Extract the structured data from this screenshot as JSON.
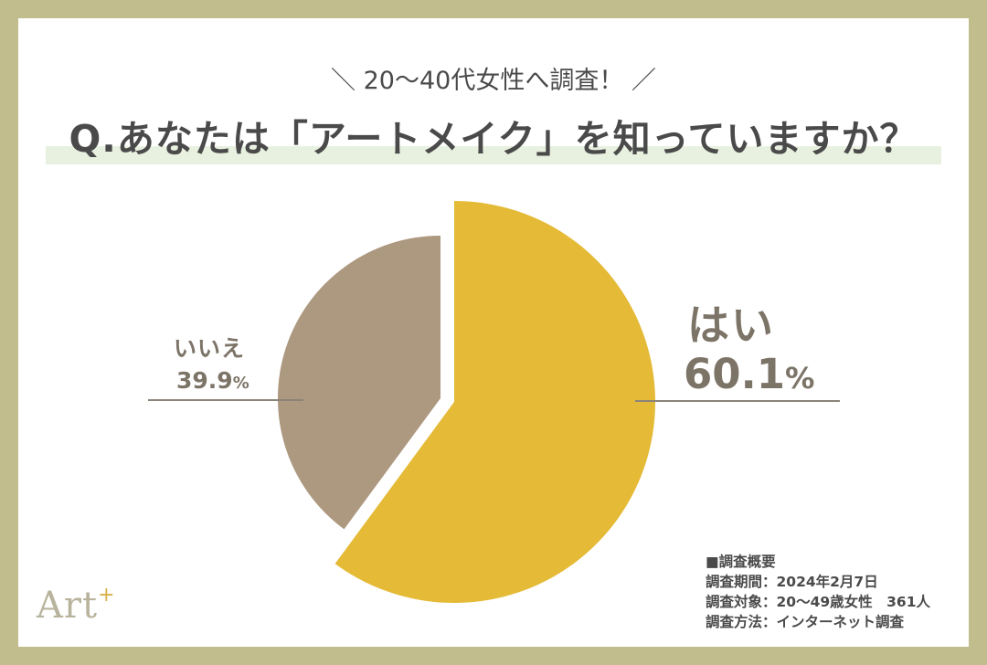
{
  "header": {
    "subtitle": "＼ 20〜40代女性へ調査！ ／",
    "title": "Q.あなたは「アートメイク」を知っていますか？"
  },
  "colors": {
    "frame": "#c2bd8c",
    "yes": "#e4ba36",
    "no": "#ad9880",
    "label_text": "#7d7468",
    "title_highlight": "#e8f1df"
  },
  "labels": {
    "yes": {
      "name": "はい",
      "value": "60.1",
      "unit": "%"
    },
    "no": {
      "name": "いいえ",
      "value": "39.9",
      "unit": "%"
    }
  },
  "summary": {
    "heading": "■調査概要",
    "lines": [
      "調査期間：2024年2月7日",
      "調査対象：20〜49歳女性　361人",
      "調査方法：インターネット調査"
    ]
  },
  "logo": {
    "text": "Art",
    "sup": "+"
  },
  "chart_data": {
    "type": "pie",
    "title": "Q.あなたは「アートメイク」を知っていますか？",
    "subtitle": "20〜40代女性へ調査！",
    "categories": [
      "はい",
      "いいえ"
    ],
    "values": [
      60.1,
      39.9
    ],
    "unit": "%",
    "colors": [
      "#e4ba36",
      "#ad9880"
    ],
    "start_angle": "12 o'clock, clockwise",
    "exploded": true,
    "legend": "none (direct labels with leader lines)"
  }
}
